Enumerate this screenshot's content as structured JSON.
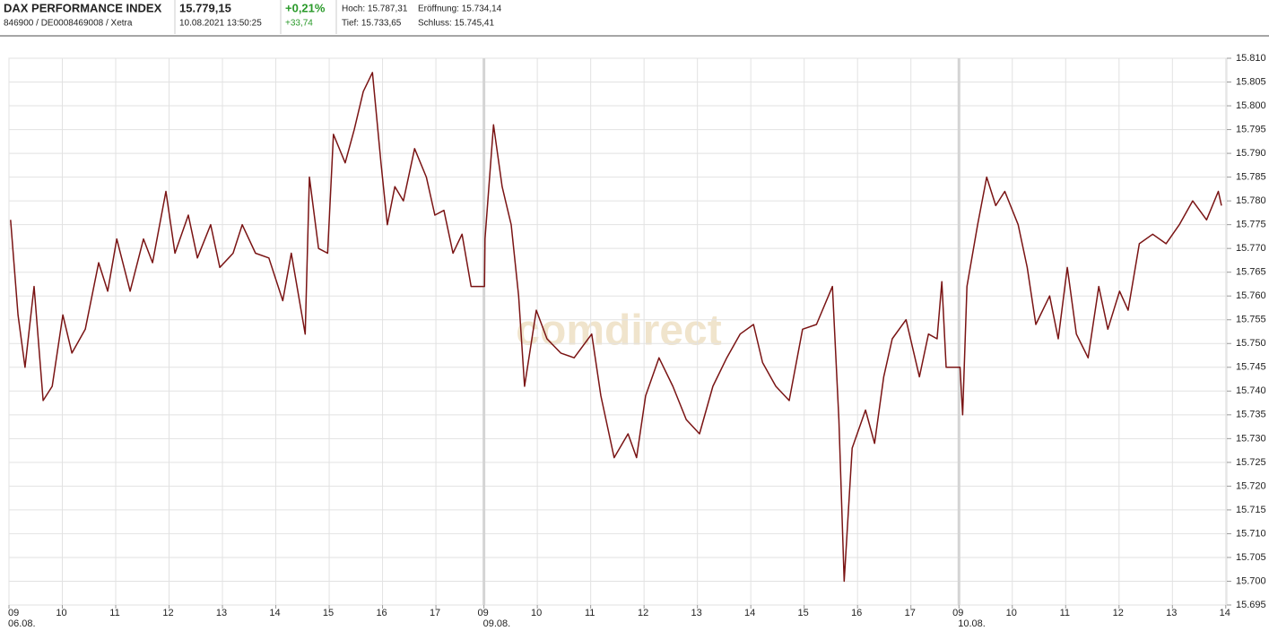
{
  "header": {
    "name": "DAX PERFORMANCE INDEX",
    "ids": "846900 / DE0008469008 / Xetra",
    "price": "15.779,15",
    "datetime": "10.08.2021 13:50:25",
    "change_pct": "+0,21%",
    "change_abs": "+33,74",
    "high": "Hoch: 15.787,31",
    "open": "Eröffnung: 15.734,14",
    "low": "Tief: 15.733,65",
    "close": "Schluss: 15.745,41"
  },
  "watermark": "comdirect",
  "chart_data": {
    "type": "line",
    "x": [
      0.03,
      0.17,
      0.3,
      0.47,
      0.64,
      0.81,
      1.01,
      1.18,
      1.43,
      1.68,
      1.85,
      2.02,
      2.27,
      2.52,
      2.69,
      2.94,
      3.11,
      3.36,
      3.53,
      3.78,
      3.95,
      4.2,
      4.37,
      4.62,
      4.87,
      5.13,
      5.29,
      5.55,
      5.63,
      5.8,
      5.97,
      6.08,
      6.3,
      6.47,
      6.64,
      6.81,
      6.97,
      7.09,
      7.23,
      7.39,
      7.6,
      7.82,
      7.98,
      8.15,
      8.32,
      8.49,
      8.66,
      8.91,
      8.92,
      9.08,
      9.24,
      9.41,
      9.55,
      9.66,
      9.88,
      10.08,
      10.34,
      10.59,
      10.92,
      11.09,
      11.34,
      11.6,
      11.76,
      11.93,
      12.18,
      12.44,
      12.69,
      12.94,
      13.19,
      13.45,
      13.7,
      13.95,
      14.12,
      14.37,
      14.62,
      14.87,
      15.13,
      15.43,
      15.55,
      15.65,
      15.8,
      16.05,
      16.22,
      16.39,
      16.55,
      16.81,
      17.06,
      17.23,
      17.39,
      17.48,
      17.56,
      17.82,
      17.87,
      17.95,
      18.15,
      18.32,
      18.49,
      18.66,
      18.91,
      19.08,
      19.24,
      19.5,
      19.66,
      19.83,
      20.0,
      20.22,
      20.42,
      20.59,
      20.81,
      20.97,
      21.18,
      21.43,
      21.68,
      21.93,
      22.18,
      22.44,
      22.66,
      22.72
    ],
    "series": [
      {
        "color": "#7a1414",
        "values": [
          15776,
          15756,
          15745,
          15762,
          15738,
          15741,
          15756,
          15748,
          15753,
          15767,
          15761,
          15772,
          15761,
          15772,
          15767,
          15782,
          15769,
          15777,
          15768,
          15775,
          15766,
          15769,
          15775,
          15769,
          15768,
          15759,
          15769,
          15752,
          15785,
          15770,
          15769,
          15794,
          15788,
          15795,
          15803,
          15807,
          15788,
          15775,
          15783,
          15780,
          15791,
          15785,
          15777,
          15778,
          15769,
          15773,
          15762,
          15762,
          15772,
          15796,
          15783,
          15775,
          15760,
          15741,
          15757,
          15751,
          15748,
          15747,
          15752,
          15739,
          15726,
          15731,
          15726,
          15739,
          15747,
          15741,
          15734,
          15731,
          15741,
          15747,
          15752,
          15754,
          15746,
          15741,
          15738,
          15753,
          15754,
          15762,
          15734,
          15700,
          15728,
          15736,
          15729,
          15743,
          15751,
          15755,
          15743,
          15752,
          15751,
          15763,
          15745,
          15745,
          15735,
          15762,
          15775,
          15785,
          15779,
          15782,
          15775,
          15766,
          15754,
          15760,
          15751,
          15766,
          15752,
          15747,
          15762,
          15753,
          15761,
          15757,
          15771,
          15773,
          15771,
          15775,
          15780,
          15776,
          15782,
          15779
        ]
      }
    ],
    "xlim": [
      0,
      22.82
    ],
    "xticks": [
      {
        "value": 0,
        "label": "09"
      },
      {
        "value": 1,
        "label": "10"
      },
      {
        "value": 2,
        "label": "11"
      },
      {
        "value": 3,
        "label": "12"
      },
      {
        "value": 4,
        "label": "13"
      },
      {
        "value": 5,
        "label": "14"
      },
      {
        "value": 6,
        "label": "15"
      },
      {
        "value": 7,
        "label": "16"
      },
      {
        "value": 8,
        "label": "17"
      },
      {
        "value": 8.9,
        "label": "09"
      },
      {
        "value": 9.9,
        "label": "10"
      },
      {
        "value": 10.9,
        "label": "11"
      },
      {
        "value": 11.9,
        "label": "12"
      },
      {
        "value": 12.9,
        "label": "13"
      },
      {
        "value": 13.9,
        "label": "14"
      },
      {
        "value": 14.9,
        "label": "15"
      },
      {
        "value": 15.9,
        "label": "16"
      },
      {
        "value": 16.9,
        "label": "17"
      },
      {
        "value": 17.8,
        "label": "09"
      },
      {
        "value": 18.8,
        "label": "10"
      },
      {
        "value": 19.8,
        "label": "11"
      },
      {
        "value": 20.8,
        "label": "12"
      },
      {
        "value": 21.8,
        "label": "13"
      },
      {
        "value": 22.8,
        "label": "14"
      }
    ],
    "date_labels": [
      {
        "value": 0,
        "label": "06.08."
      },
      {
        "value": 8.9,
        "label": "09.08."
      },
      {
        "value": 17.8,
        "label": "10.08."
      }
    ],
    "ylim": [
      15695,
      15810
    ],
    "yticks": [
      {
        "value": 15695,
        "label": "15.695"
      },
      {
        "value": 15700,
        "label": "15.700"
      },
      {
        "value": 15705,
        "label": "15.705"
      },
      {
        "value": 15710,
        "label": "15.710"
      },
      {
        "value": 15715,
        "label": "15.715"
      },
      {
        "value": 15720,
        "label": "15.720"
      },
      {
        "value": 15725,
        "label": "15.725"
      },
      {
        "value": 15730,
        "label": "15.730"
      },
      {
        "value": 15735,
        "label": "15.735"
      },
      {
        "value": 15740,
        "label": "15.740"
      },
      {
        "value": 15745,
        "label": "15.745"
      },
      {
        "value": 15750,
        "label": "15.750"
      },
      {
        "value": 15755,
        "label": "15.755"
      },
      {
        "value": 15760,
        "label": "15.760"
      },
      {
        "value": 15765,
        "label": "15.765"
      },
      {
        "value": 15770,
        "label": "15.770"
      },
      {
        "value": 15775,
        "label": "15.775"
      },
      {
        "value": 15780,
        "label": "15.780"
      },
      {
        "value": 15785,
        "label": "15.785"
      },
      {
        "value": 15790,
        "label": "15.790"
      },
      {
        "value": 15795,
        "label": "15.795"
      },
      {
        "value": 15800,
        "label": "15.800"
      },
      {
        "value": 15805,
        "label": "15.805"
      },
      {
        "value": 15810,
        "label": "15.810"
      }
    ],
    "grid": true
  }
}
